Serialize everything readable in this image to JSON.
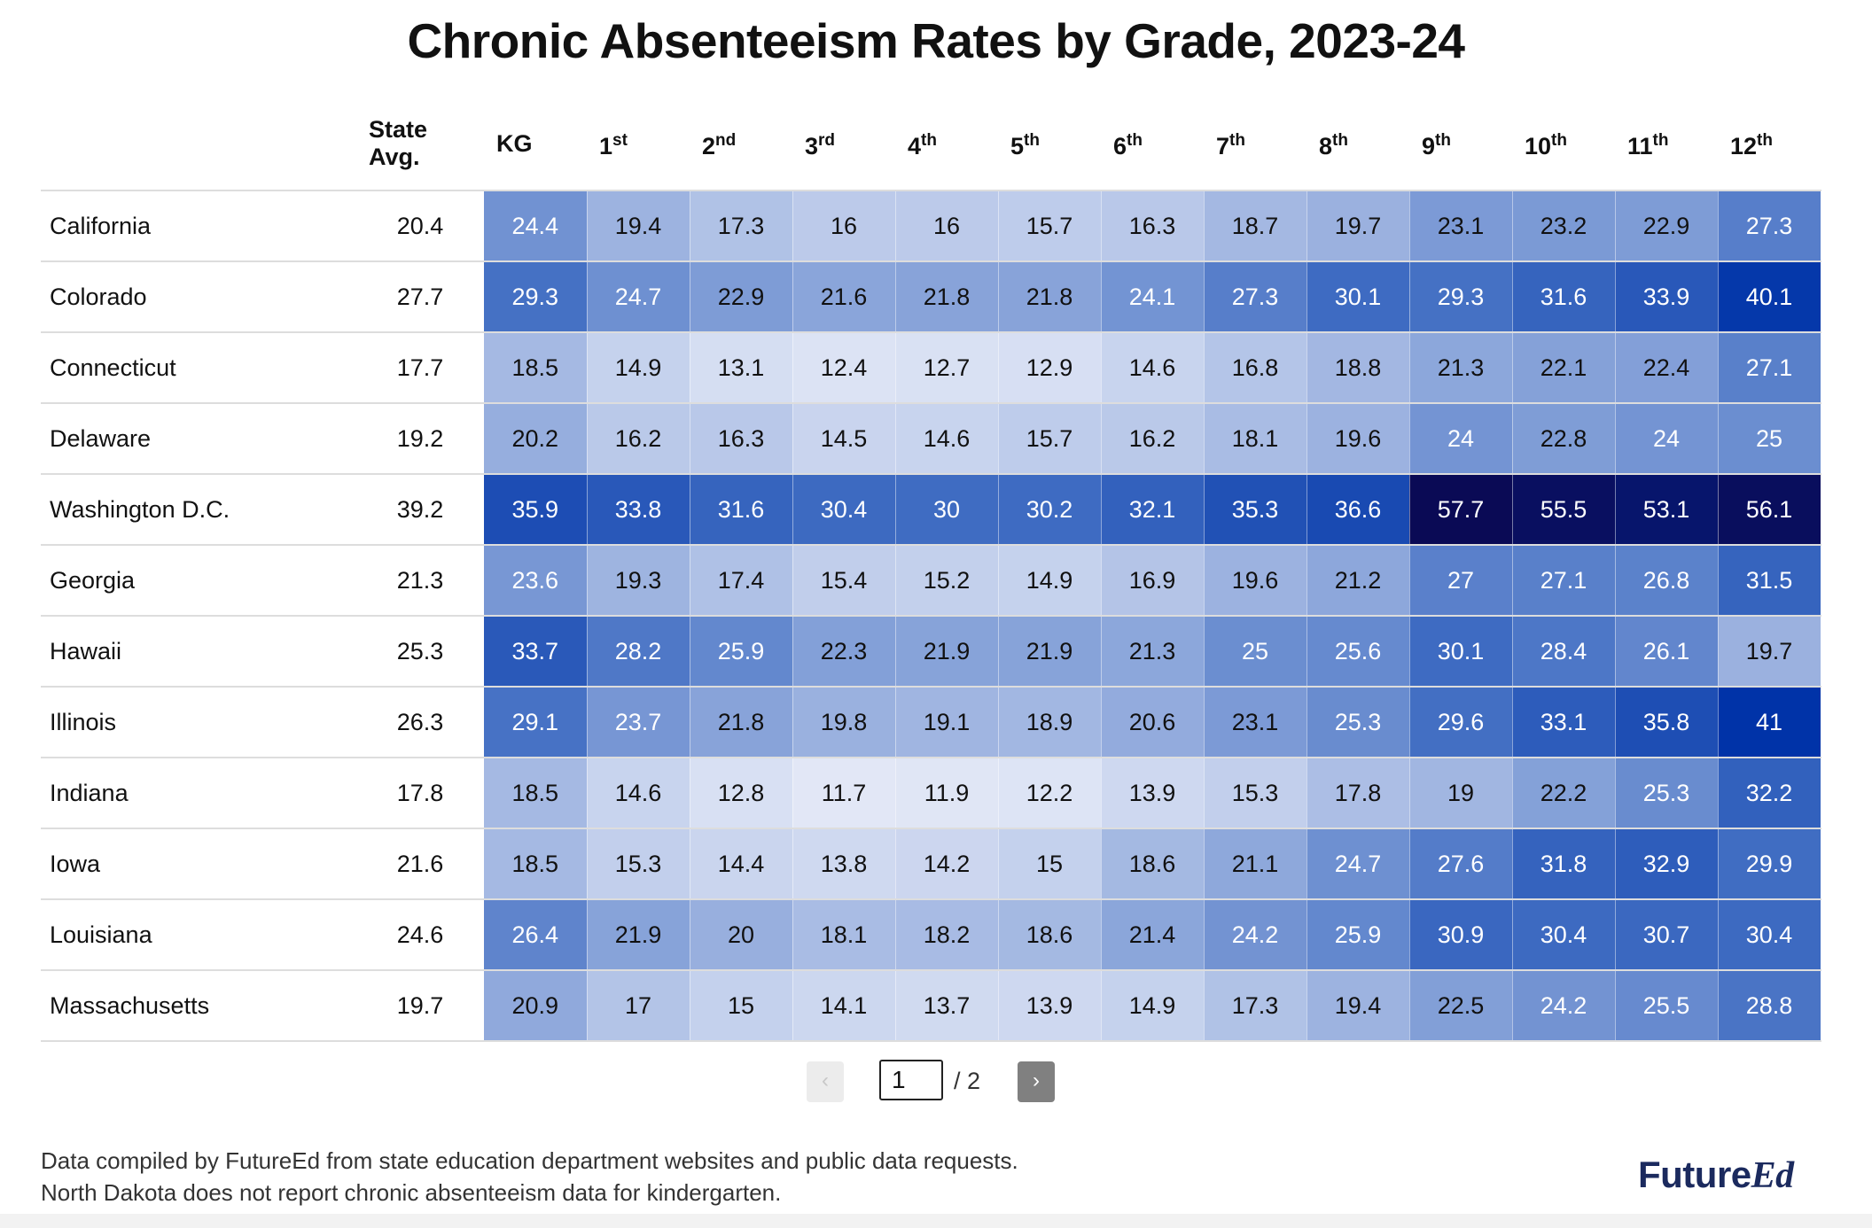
{
  "title": "Chronic Absenteeism Rates by Grade, 2023-24",
  "headers": {
    "state": "",
    "avg_line1": "State",
    "avg_line2": "Avg.",
    "grades": [
      {
        "base": "KG",
        "sup": ""
      },
      {
        "base": "1",
        "sup": "st"
      },
      {
        "base": "2",
        "sup": "nd"
      },
      {
        "base": "3",
        "sup": "rd"
      },
      {
        "base": "4",
        "sup": "th"
      },
      {
        "base": "5",
        "sup": "th"
      },
      {
        "base": "6",
        "sup": "th"
      },
      {
        "base": "7",
        "sup": "th"
      },
      {
        "base": "8",
        "sup": "th"
      },
      {
        "base": "9",
        "sup": "th"
      },
      {
        "base": "10",
        "sup": "th"
      },
      {
        "base": "11",
        "sup": "th"
      },
      {
        "base": "12",
        "sup": "th"
      }
    ]
  },
  "rows": [
    {
      "state": "California",
      "avg": "20.4",
      "values": [
        "24.4",
        "19.4",
        "17.3",
        "16",
        "16",
        "15.7",
        "16.3",
        "18.7",
        "19.7",
        "23.1",
        "23.2",
        "22.9",
        "27.3"
      ]
    },
    {
      "state": "Colorado",
      "avg": "27.7",
      "values": [
        "29.3",
        "24.7",
        "22.9",
        "21.6",
        "21.8",
        "21.8",
        "24.1",
        "27.3",
        "30.1",
        "29.3",
        "31.6",
        "33.9",
        "40.1"
      ]
    },
    {
      "state": "Connecticut",
      "avg": "17.7",
      "values": [
        "18.5",
        "14.9",
        "13.1",
        "12.4",
        "12.7",
        "12.9",
        "14.6",
        "16.8",
        "18.8",
        "21.3",
        "22.1",
        "22.4",
        "27.1"
      ]
    },
    {
      "state": "Delaware",
      "avg": "19.2",
      "values": [
        "20.2",
        "16.2",
        "16.3",
        "14.5",
        "14.6",
        "15.7",
        "16.2",
        "18.1",
        "19.6",
        "24",
        "22.8",
        "24",
        "25"
      ]
    },
    {
      "state": "Washington D.C.",
      "avg": "39.2",
      "values": [
        "35.9",
        "33.8",
        "31.6",
        "30.4",
        "30",
        "30.2",
        "32.1",
        "35.3",
        "36.6",
        "57.7",
        "55.5",
        "53.1",
        "56.1"
      ]
    },
    {
      "state": "Georgia",
      "avg": "21.3",
      "values": [
        "23.6",
        "19.3",
        "17.4",
        "15.4",
        "15.2",
        "14.9",
        "16.9",
        "19.6",
        "21.2",
        "27",
        "27.1",
        "26.8",
        "31.5"
      ]
    },
    {
      "state": "Hawaii",
      "avg": "25.3",
      "values": [
        "33.7",
        "28.2",
        "25.9",
        "22.3",
        "21.9",
        "21.9",
        "21.3",
        "25",
        "25.6",
        "30.1",
        "28.4",
        "26.1",
        "19.7"
      ]
    },
    {
      "state": "Illinois",
      "avg": "26.3",
      "values": [
        "29.1",
        "23.7",
        "21.8",
        "19.8",
        "19.1",
        "18.9",
        "20.6",
        "23.1",
        "25.3",
        "29.6",
        "33.1",
        "35.8",
        "41"
      ]
    },
    {
      "state": "Indiana",
      "avg": "17.8",
      "values": [
        "18.5",
        "14.6",
        "12.8",
        "11.7",
        "11.9",
        "12.2",
        "13.9",
        "15.3",
        "17.8",
        "19",
        "22.2",
        "25.3",
        "32.2"
      ]
    },
    {
      "state": "Iowa",
      "avg": "21.6",
      "values": [
        "18.5",
        "15.3",
        "14.4",
        "13.8",
        "14.2",
        "15",
        "18.6",
        "21.1",
        "24.7",
        "27.6",
        "31.8",
        "32.9",
        "29.9"
      ]
    },
    {
      "state": "Louisiana",
      "avg": "24.6",
      "values": [
        "26.4",
        "21.9",
        "20",
        "18.1",
        "18.2",
        "18.6",
        "21.4",
        "24.2",
        "25.9",
        "30.9",
        "30.4",
        "30.7",
        "30.4"
      ]
    },
    {
      "state": "Massachusetts",
      "avg": "19.7",
      "values": [
        "20.9",
        "17",
        "15",
        "14.1",
        "13.7",
        "13.9",
        "14.9",
        "17.3",
        "19.4",
        "22.5",
        "24.2",
        "25.5",
        "28.8"
      ]
    }
  ],
  "pager": {
    "prev": "‹",
    "current": "1",
    "total": "/ 2",
    "next": "›"
  },
  "footnotes": [
    "Data compiled by FutureEd from state education department websites and public data requests.",
    "North Dakota does not report chronic absenteeism data for kindergarten."
  ],
  "logo": {
    "part1": "Future",
    "part2": "Ed"
  },
  "colors": {
    "scale_light": "#e8ecf8",
    "scale_mid": "#3f6cc2",
    "scale_strong": "#0033a8",
    "scale_darkest": "#0a0a55",
    "text_dark": "#111111",
    "text_light": "#ffffff",
    "logo": "#1b2a5e"
  },
  "chart_data": {
    "type": "heatmap",
    "title": "Chronic Absenteeism Rates by Grade, 2023-24",
    "columns": [
      "State Avg.",
      "KG",
      "1st",
      "2nd",
      "3rd",
      "4th",
      "5th",
      "6th",
      "7th",
      "8th",
      "9th",
      "10th",
      "11th",
      "12th"
    ],
    "rows": [
      "California",
      "Colorado",
      "Connecticut",
      "Delaware",
      "Washington D.C.",
      "Georgia",
      "Hawaii",
      "Illinois",
      "Indiana",
      "Iowa",
      "Louisiana",
      "Massachusetts"
    ],
    "values": [
      [
        20.4,
        24.4,
        19.4,
        17.3,
        16,
        16,
        15.7,
        16.3,
        18.7,
        19.7,
        23.1,
        23.2,
        22.9,
        27.3
      ],
      [
        27.7,
        29.3,
        24.7,
        22.9,
        21.6,
        21.8,
        21.8,
        24.1,
        27.3,
        30.1,
        29.3,
        31.6,
        33.9,
        40.1
      ],
      [
        17.7,
        18.5,
        14.9,
        13.1,
        12.4,
        12.7,
        12.9,
        14.6,
        16.8,
        18.8,
        21.3,
        22.1,
        22.4,
        27.1
      ],
      [
        19.2,
        20.2,
        16.2,
        16.3,
        14.5,
        14.6,
        15.7,
        16.2,
        18.1,
        19.6,
        24,
        22.8,
        24,
        25
      ],
      [
        39.2,
        35.9,
        33.8,
        31.6,
        30.4,
        30,
        30.2,
        32.1,
        35.3,
        36.6,
        57.7,
        55.5,
        53.1,
        56.1
      ],
      [
        21.3,
        23.6,
        19.3,
        17.4,
        15.4,
        15.2,
        14.9,
        16.9,
        19.6,
        21.2,
        27,
        27.1,
        26.8,
        31.5
      ],
      [
        25.3,
        33.7,
        28.2,
        25.9,
        22.3,
        21.9,
        21.9,
        21.3,
        25,
        25.6,
        30.1,
        28.4,
        26.1,
        19.7
      ],
      [
        26.3,
        29.1,
        23.7,
        21.8,
        19.8,
        19.1,
        18.9,
        20.6,
        23.1,
        25.3,
        29.6,
        33.1,
        35.8,
        41
      ],
      [
        17.8,
        18.5,
        14.6,
        12.8,
        11.7,
        11.9,
        12.2,
        13.9,
        15.3,
        17.8,
        19,
        22.2,
        25.3,
        32.2
      ],
      [
        21.6,
        18.5,
        15.3,
        14.4,
        13.8,
        14.2,
        15,
        18.6,
        21.1,
        24.7,
        27.6,
        31.8,
        32.9,
        29.9
      ],
      [
        24.6,
        26.4,
        21.9,
        20,
        18.1,
        18.2,
        18.6,
        21.4,
        24.2,
        25.9,
        30.9,
        30.4,
        30.7,
        30.4
      ],
      [
        19.7,
        20.9,
        17,
        15,
        14.1,
        13.7,
        13.9,
        14.9,
        17.3,
        19.4,
        22.5,
        24.2,
        25.5,
        28.8
      ]
    ],
    "page": 1,
    "pages": 2
  }
}
